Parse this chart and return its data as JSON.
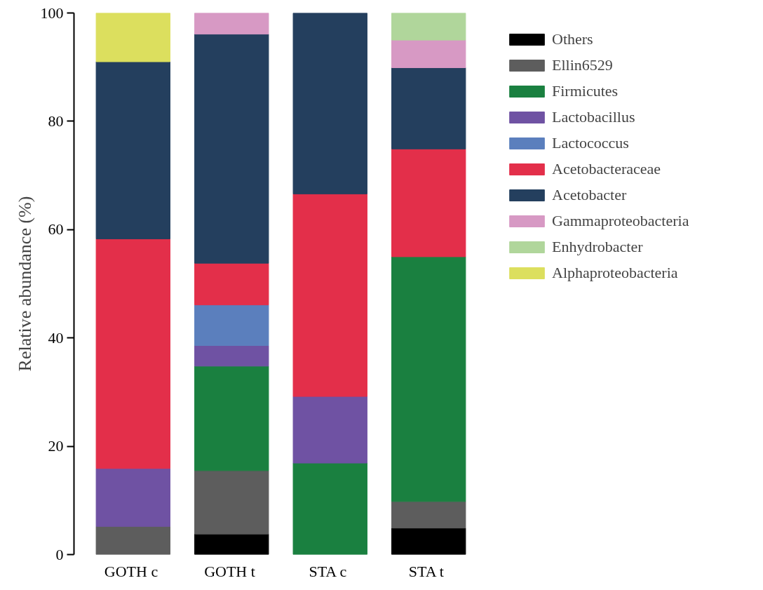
{
  "chart_data": {
    "type": "bar",
    "stacked": true,
    "ylabel": "Relative abundance (%)",
    "categories": [
      "GOTH  c",
      "GOTH  t",
      "STA  c",
      "STA  t"
    ],
    "ylim": [
      0,
      100
    ],
    "yticks": [
      0,
      20,
      40,
      60,
      80,
      100
    ],
    "grid": false,
    "legend": "right",
    "series": [
      {
        "name": "Others",
        "color": "#000000",
        "values": [
          null,
          3.8,
          null,
          4.9
        ]
      },
      {
        "name": "Ellin6529",
        "color": "#5d5d5d",
        "values": [
          5.2,
          11.7,
          null,
          4.9
        ]
      },
      {
        "name": "Firmicutes",
        "color": "#1a8040",
        "values": [
          null,
          19.3,
          16.9,
          45.2
        ]
      },
      {
        "name": "Lactobacillus",
        "color": "#6f52a3",
        "values": [
          10.7,
          3.8,
          12.3,
          null
        ]
      },
      {
        "name": "Lactococcus",
        "color": "#5b7fbd",
        "values": [
          null,
          7.5,
          null,
          null
        ]
      },
      {
        "name": "Acetobacteraceae",
        "color": "#e32f4a",
        "values": [
          42.4,
          7.7,
          37.4,
          19.9
        ]
      },
      {
        "name": "Acetobacter",
        "color": "#243f5e",
        "values": [
          32.7,
          42.3,
          33.4,
          15.0
        ]
      },
      {
        "name": "Gammaproteobacteria",
        "color": "#d799c4",
        "values": [
          null,
          3.9,
          null,
          5.1
        ]
      },
      {
        "name": "Enhydrobacter",
        "color": "#b0d69b",
        "values": [
          null,
          null,
          null,
          5.0
        ]
      },
      {
        "name": "Alphaproteobacteria",
        "color": "#dcdf5e",
        "values": [
          9.0,
          null,
          null,
          null
        ]
      }
    ]
  }
}
